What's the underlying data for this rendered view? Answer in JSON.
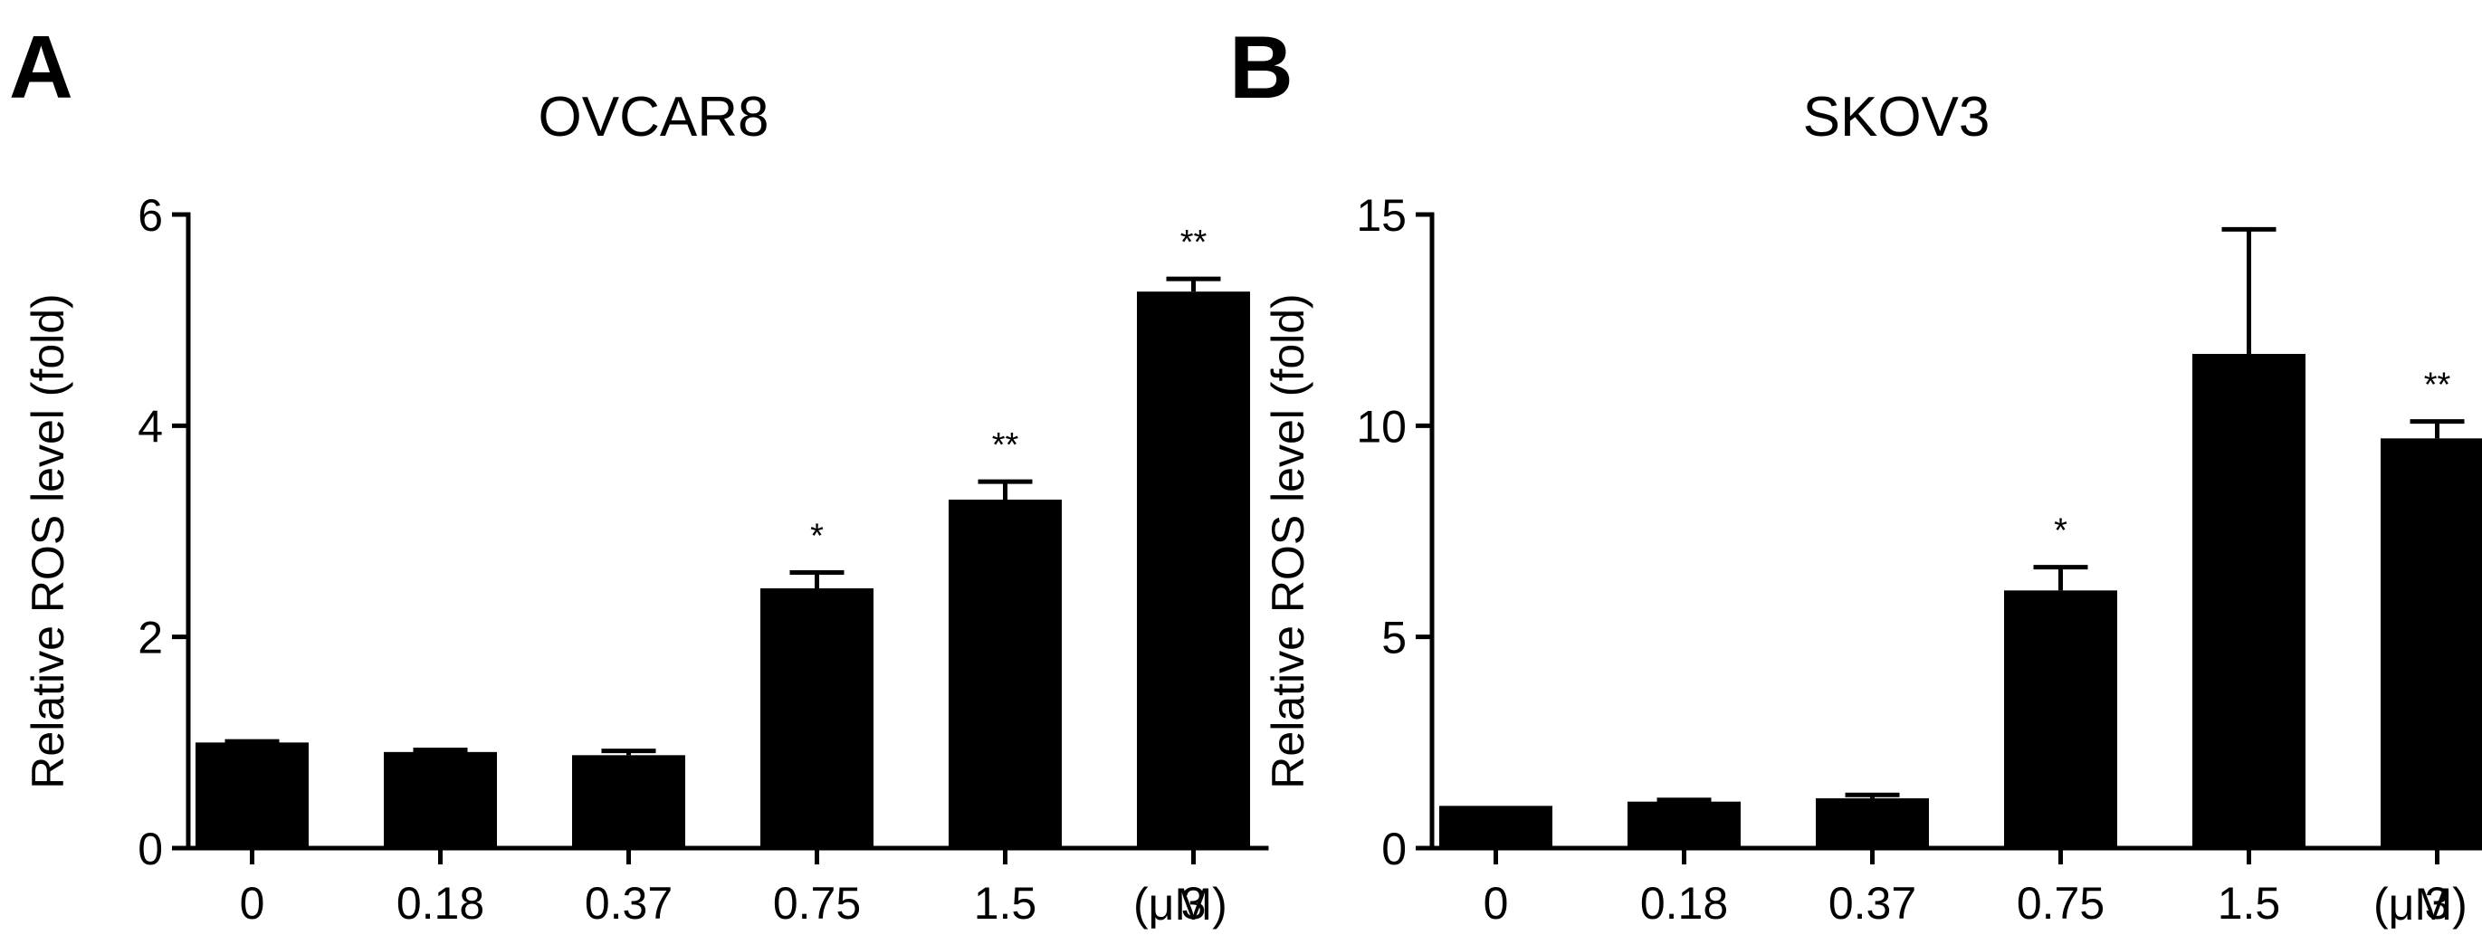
{
  "chart_data": [
    {
      "type": "bar",
      "panel": "A",
      "title": "OVCAR8",
      "xlabel": "",
      "ylabel": "Relative ROS level (fold)",
      "unit": "(μM)",
      "categories": [
        "0",
        "0.18",
        "0.37",
        "0.75",
        "1.5",
        "3"
      ],
      "values": [
        1.0,
        0.91,
        0.88,
        2.46,
        3.3,
        5.27
      ],
      "errors": [
        0.01,
        0.02,
        0.04,
        0.15,
        0.17,
        0.12
      ],
      "significance": [
        "",
        "",
        "",
        "*",
        "**",
        "**"
      ],
      "ylim": [
        0,
        6
      ],
      "yticks": [
        0,
        2,
        4,
        6
      ],
      "bar_color": "#000000",
      "grid": false,
      "legend": "none"
    },
    {
      "type": "bar",
      "panel": "B",
      "title": "SKOV3",
      "xlabel": "",
      "ylabel": "Relative ROS level (fold)",
      "unit": "(μM)",
      "categories": [
        "0",
        "0.18",
        "0.37",
        "0.75",
        "1.5",
        "3"
      ],
      "values": [
        1.0,
        1.1,
        1.18,
        6.1,
        11.7,
        9.7
      ],
      "errors": [
        0.02,
        0.04,
        0.08,
        0.55,
        2.95,
        0.4
      ],
      "significance": [
        "",
        "",
        "",
        "*",
        "",
        "**"
      ],
      "ylim": [
        0,
        15
      ],
      "yticks": [
        0,
        5,
        10,
        15
      ],
      "bar_color": "#000000",
      "grid": false,
      "legend": "none"
    }
  ]
}
